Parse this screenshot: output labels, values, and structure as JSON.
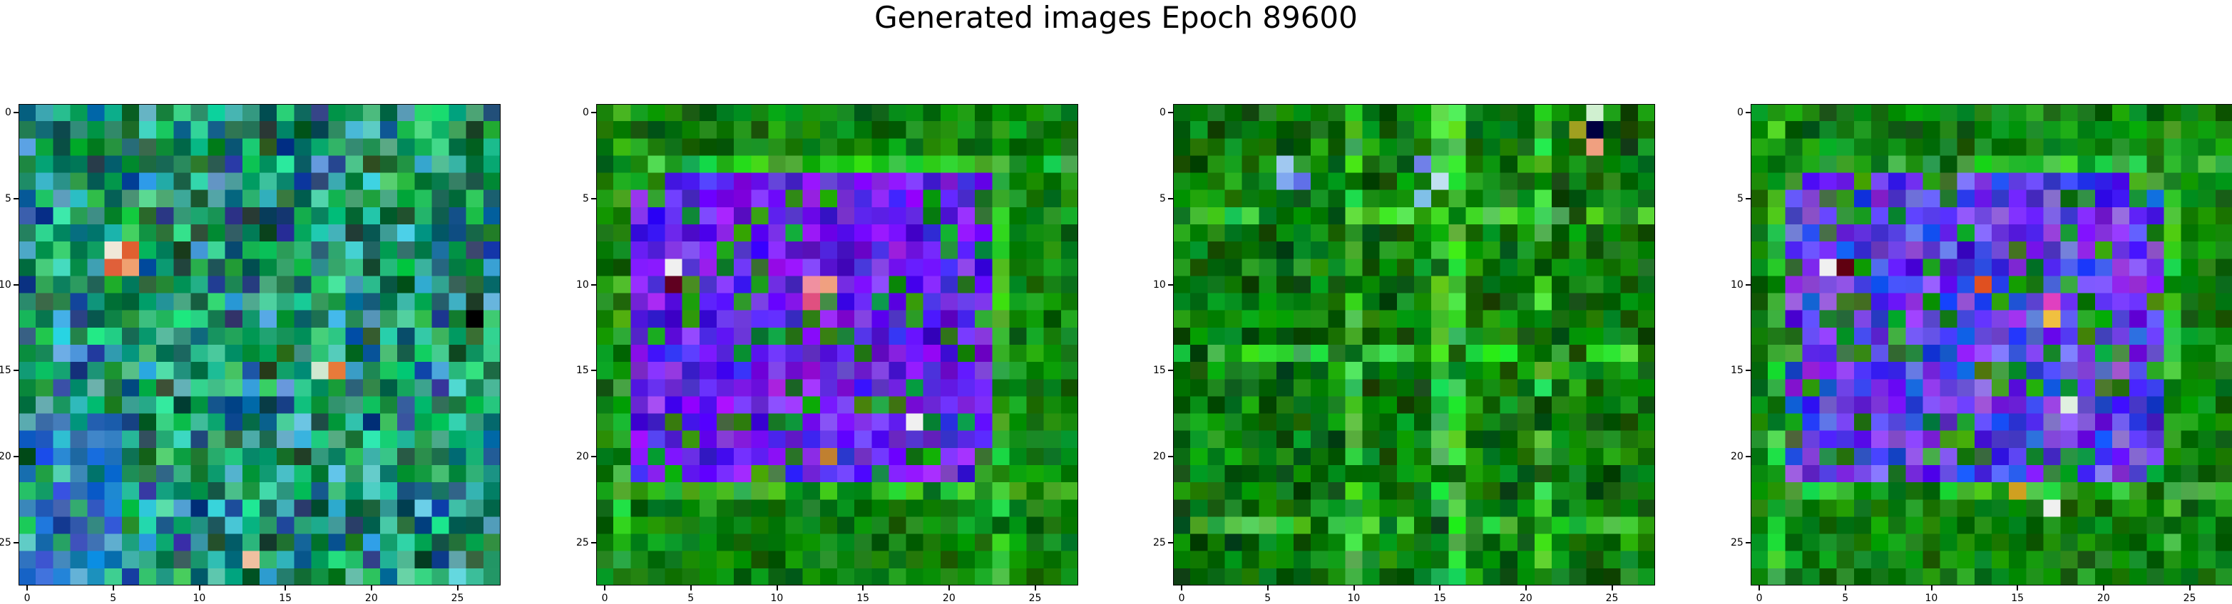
{
  "title": "Generated images Epoch 89600",
  "chart_data": {
    "type": "heatmap",
    "title": "Generated images Epoch 89600",
    "grid": false,
    "xlim": [
      -0.5,
      27.5
    ],
    "ylim": [
      27.5,
      -0.5
    ],
    "xticks": [
      "0",
      "5",
      "10",
      "15",
      "20",
      "25"
    ],
    "yticks": [
      "0",
      "5",
      "10",
      "15",
      "20",
      "25"
    ],
    "panels": [
      {
        "size": [
          28,
          28
        ],
        "description": "mostly teal/green noise texture with blue patches at lower left and a few orange pixels",
        "base_colors": [
          "#0a8a4a",
          "#12a860",
          "#2ab07a",
          "#1c6e4a",
          "#3ac890",
          "#1a4e8a",
          "#4ab8c8",
          "#0c5a38"
        ],
        "accent_pixels": [
          {
            "row": 8,
            "col": 5,
            "color": "#f0e8d8"
          },
          {
            "row": 8,
            "col": 6,
            "color": "#e06030"
          },
          {
            "row": 9,
            "col": 5,
            "color": "#e0603a"
          },
          {
            "row": 9,
            "col": 6,
            "color": "#f0a070"
          },
          {
            "row": 15,
            "col": 18,
            "color": "#e87a3a"
          },
          {
            "row": 15,
            "col": 17,
            "color": "#d0e8d0"
          },
          {
            "row": 26,
            "col": 13,
            "color": "#f0c0a0"
          },
          {
            "row": 12,
            "col": 26,
            "color": "#000000"
          }
        ]
      },
      {
        "size": [
          28,
          28
        ],
        "description": "green background with violet/blue square frame from rows 4-21 cols 2-22",
        "base_colors": [
          "#0a7a0a",
          "#108a10",
          "#066606",
          "#1a9a1a"
        ],
        "frame_colors": [
          "#7a20f0",
          "#5a10e8",
          "#8a30ff",
          "#6a28e0",
          "#4a18d8"
        ],
        "frame_rect": [
          4,
          2,
          21,
          22
        ],
        "accent_pixels": [
          {
            "row": 9,
            "col": 4,
            "color": "#f0f0f0"
          },
          {
            "row": 10,
            "col": 12,
            "color": "#f090a0"
          },
          {
            "row": 10,
            "col": 13,
            "color": "#f0a080"
          },
          {
            "row": 11,
            "col": 12,
            "color": "#e05080"
          },
          {
            "row": 18,
            "col": 18,
            "color": "#f0f0f0"
          },
          {
            "row": 20,
            "col": 13,
            "color": "#c08030"
          },
          {
            "row": 10,
            "col": 4,
            "color": "#600020"
          }
        ]
      },
      {
        "size": [
          28,
          28
        ],
        "description": "green noise background with lighter green grid lines and a few blue/white pixels",
        "base_colors": [
          "#0a7a0a",
          "#108a10",
          "#066606",
          "#1a9a1a",
          "#045004"
        ],
        "accent_pixels": [
          {
            "row": 3,
            "col": 6,
            "color": "#a0c8f0"
          },
          {
            "row": 4,
            "col": 6,
            "color": "#80a8f0"
          },
          {
            "row": 4,
            "col": 7,
            "color": "#6070e8"
          },
          {
            "row": 3,
            "col": 14,
            "color": "#7080e8"
          },
          {
            "row": 4,
            "col": 15,
            "color": "#c0e0f0"
          },
          {
            "row": 5,
            "col": 14,
            "color": "#80c0e8"
          },
          {
            "row": 0,
            "col": 24,
            "color": "#d0f0d0"
          },
          {
            "row": 1,
            "col": 24,
            "color": "#000040"
          },
          {
            "row": 2,
            "col": 24,
            "color": "#f0a080"
          },
          {
            "row": 1,
            "col": 23,
            "color": "#a0a020"
          }
        ]
      },
      {
        "size": [
          28,
          28
        ],
        "description": "green background with mixed violet/blue square frame and multicolored pixels",
        "base_colors": [
          "#0a7a0a",
          "#108a10",
          "#066606",
          "#1a9a1a"
        ],
        "frame_colors": [
          "#6030e8",
          "#4a20d8",
          "#8040f0",
          "#3050e0",
          "#7a60e8"
        ],
        "frame_rect": [
          4,
          2,
          21,
          23
        ],
        "accent_pixels": [
          {
            "row": 9,
            "col": 4,
            "color": "#f0f0f0"
          },
          {
            "row": 10,
            "col": 13,
            "color": "#e05020"
          },
          {
            "row": 11,
            "col": 17,
            "color": "#e040c0"
          },
          {
            "row": 12,
            "col": 17,
            "color": "#f0c040"
          },
          {
            "row": 17,
            "col": 18,
            "color": "#e0f0e0"
          },
          {
            "row": 22,
            "col": 15,
            "color": "#d0a020"
          },
          {
            "row": 23,
            "col": 17,
            "color": "#f0f0f0"
          },
          {
            "row": 9,
            "col": 5,
            "color": "#600010"
          }
        ]
      }
    ]
  }
}
